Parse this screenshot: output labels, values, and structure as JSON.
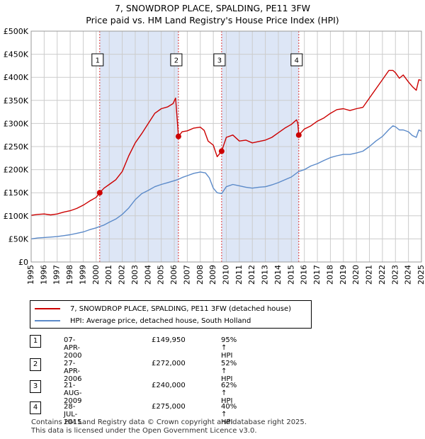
{
  "header": {
    "title": "7, SNOWDROP PLACE, SPALDING, PE11 3FW",
    "subtitle": "Price paid vs. HM Land Registry's House Price Index (HPI)"
  },
  "colors": {
    "property_line": "#cc0000",
    "hpi_line": "#5b8ac9",
    "shade": "#dde6f6",
    "grid": "#cccccc",
    "vline": "#dd3333"
  },
  "legend": {
    "property_label": "7, SNOWDROP PLACE, SPALDING, PE11 3FW (detached house)",
    "hpi_label": "HPI: Average price, detached house, South Holland"
  },
  "sales": [
    {
      "num": "1",
      "date": "07-APR-2000",
      "price": "£149,950",
      "hpi": "95% ↑ HPI"
    },
    {
      "num": "2",
      "date": "27-APR-2006",
      "price": "£272,000",
      "hpi": "52% ↑ HPI"
    },
    {
      "num": "3",
      "date": "21-AUG-2009",
      "price": "£240,000",
      "hpi": "62% ↑ HPI"
    },
    {
      "num": "4",
      "date": "28-JUL-2015",
      "price": "£275,000",
      "hpi": "40% ↑ HPI"
    }
  ],
  "footer": {
    "line1": "Contains HM Land Registry data © Crown copyright and database right 2025.",
    "line2": "This data is licensed under the Open Government Licence v3.0."
  },
  "chart_data": {
    "type": "line",
    "title": "7, SNOWDROP PLACE, SPALDING, PE11 3FW",
    "subtitle": "Price paid vs. HM Land Registry's House Price Index (HPI)",
    "xlabel": "",
    "ylabel": "",
    "xlim": [
      1995,
      2025
    ],
    "ylim": [
      0,
      500000
    ],
    "x_ticks": [
      1995,
      1996,
      1997,
      1998,
      1999,
      2000,
      2001,
      2002,
      2003,
      2004,
      2005,
      2006,
      2007,
      2008,
      2009,
      2010,
      2011,
      2012,
      2013,
      2014,
      2015,
      2016,
      2017,
      2018,
      2019,
      2020,
      2021,
      2022,
      2023,
      2024,
      2025
    ],
    "y_ticks": [
      {
        "value": 0,
        "label": "£0"
      },
      {
        "value": 50000,
        "label": "£50K"
      },
      {
        "value": 100000,
        "label": "£100K"
      },
      {
        "value": 150000,
        "label": "£150K"
      },
      {
        "value": 200000,
        "label": "£200K"
      },
      {
        "value": 250000,
        "label": "£250K"
      },
      {
        "value": 300000,
        "label": "£300K"
      },
      {
        "value": 350000,
        "label": "£350K"
      },
      {
        "value": 400000,
        "label": "£400K"
      },
      {
        "value": 450000,
        "label": "£450K"
      },
      {
        "value": 500000,
        "label": "£500K"
      }
    ],
    "grid": true,
    "shaded_ranges": [
      [
        2000.27,
        2006.32
      ],
      [
        2009.64,
        2015.57
      ]
    ],
    "markers": [
      {
        "label": "1",
        "x": 2000.27,
        "y": 149950
      },
      {
        "label": "2",
        "x": 2006.32,
        "y": 272000
      },
      {
        "label": "3",
        "x": 2009.64,
        "y": 240000
      },
      {
        "label": "4",
        "x": 2015.57,
        "y": 275000
      }
    ],
    "series": [
      {
        "name": "7, SNOWDROP PLACE, SPALDING, PE11 3FW (detached house)",
        "color": "#cc0000",
        "points": [
          [
            1995.0,
            101000
          ],
          [
            1995.5,
            103000
          ],
          [
            1996.0,
            104000
          ],
          [
            1996.5,
            102000
          ],
          [
            1997.0,
            104000
          ],
          [
            1997.5,
            108000
          ],
          [
            1998.0,
            111000
          ],
          [
            1998.5,
            116000
          ],
          [
            1999.0,
            123000
          ],
          [
            1999.5,
            132000
          ],
          [
            2000.0,
            140000
          ],
          [
            2000.27,
            149950
          ],
          [
            2000.6,
            160000
          ],
          [
            2001.0,
            168000
          ],
          [
            2001.5,
            178000
          ],
          [
            2002.0,
            196000
          ],
          [
            2002.5,
            230000
          ],
          [
            2003.0,
            258000
          ],
          [
            2003.5,
            278000
          ],
          [
            2004.0,
            300000
          ],
          [
            2004.5,
            322000
          ],
          [
            2005.0,
            332000
          ],
          [
            2005.5,
            336000
          ],
          [
            2005.9,
            343000
          ],
          [
            2006.1,
            355000
          ],
          [
            2006.25,
            300000
          ],
          [
            2006.32,
            272000
          ],
          [
            2006.6,
            282000
          ],
          [
            2007.0,
            284000
          ],
          [
            2007.5,
            290000
          ],
          [
            2008.0,
            292000
          ],
          [
            2008.3,
            285000
          ],
          [
            2008.6,
            262000
          ],
          [
            2009.0,
            253000
          ],
          [
            2009.3,
            228000
          ],
          [
            2009.64,
            240000
          ],
          [
            2010.0,
            270000
          ],
          [
            2010.5,
            275000
          ],
          [
            2011.0,
            262000
          ],
          [
            2011.5,
            264000
          ],
          [
            2012.0,
            258000
          ],
          [
            2012.5,
            261000
          ],
          [
            2013.0,
            264000
          ],
          [
            2013.5,
            270000
          ],
          [
            2014.0,
            280000
          ],
          [
            2014.5,
            290000
          ],
          [
            2015.0,
            298000
          ],
          [
            2015.4,
            308000
          ],
          [
            2015.5,
            300000
          ],
          [
            2015.57,
            275000
          ],
          [
            2016.0,
            288000
          ],
          [
            2016.5,
            295000
          ],
          [
            2017.0,
            305000
          ],
          [
            2017.5,
            312000
          ],
          [
            2018.0,
            322000
          ],
          [
            2018.5,
            330000
          ],
          [
            2019.0,
            332000
          ],
          [
            2019.5,
            328000
          ],
          [
            2020.0,
            332000
          ],
          [
            2020.5,
            335000
          ],
          [
            2021.0,
            355000
          ],
          [
            2021.5,
            375000
          ],
          [
            2022.0,
            395000
          ],
          [
            2022.5,
            415000
          ],
          [
            2022.8,
            415000
          ],
          [
            2023.0,
            410000
          ],
          [
            2023.3,
            398000
          ],
          [
            2023.6,
            405000
          ],
          [
            2024.0,
            390000
          ],
          [
            2024.3,
            380000
          ],
          [
            2024.6,
            372000
          ],
          [
            2024.8,
            395000
          ],
          [
            2025.0,
            393000
          ]
        ]
      },
      {
        "name": "HPI: Average price, detached house, South Holland",
        "color": "#5b8ac9",
        "points": [
          [
            1995.0,
            50000
          ],
          [
            1995.5,
            52000
          ],
          [
            1996.0,
            53000
          ],
          [
            1996.5,
            54000
          ],
          [
            1997.0,
            55000
          ],
          [
            1997.5,
            57000
          ],
          [
            1998.0,
            59000
          ],
          [
            1998.5,
            62000
          ],
          [
            1999.0,
            65000
          ],
          [
            1999.5,
            70000
          ],
          [
            2000.0,
            74000
          ],
          [
            2000.27,
            76800
          ],
          [
            2000.6,
            80000
          ],
          [
            2001.0,
            86000
          ],
          [
            2001.5,
            93000
          ],
          [
            2002.0,
            103000
          ],
          [
            2002.5,
            117000
          ],
          [
            2003.0,
            135000
          ],
          [
            2003.5,
            148000
          ],
          [
            2004.0,
            155000
          ],
          [
            2004.5,
            163000
          ],
          [
            2005.0,
            168000
          ],
          [
            2005.5,
            172000
          ],
          [
            2006.0,
            176000
          ],
          [
            2006.32,
            179000
          ],
          [
            2006.6,
            183000
          ],
          [
            2007.0,
            187000
          ],
          [
            2007.5,
            192000
          ],
          [
            2008.0,
            195000
          ],
          [
            2008.4,
            193000
          ],
          [
            2008.7,
            182000
          ],
          [
            2009.0,
            160000
          ],
          [
            2009.3,
            150000
          ],
          [
            2009.64,
            148000
          ],
          [
            2010.0,
            163000
          ],
          [
            2010.5,
            168000
          ],
          [
            2011.0,
            165000
          ],
          [
            2011.5,
            162000
          ],
          [
            2012.0,
            160000
          ],
          [
            2012.5,
            162000
          ],
          [
            2013.0,
            163000
          ],
          [
            2013.5,
            167000
          ],
          [
            2014.0,
            172000
          ],
          [
            2014.5,
            178000
          ],
          [
            2015.0,
            184000
          ],
          [
            2015.57,
            196000
          ],
          [
            2016.0,
            200000
          ],
          [
            2016.5,
            208000
          ],
          [
            2017.0,
            213000
          ],
          [
            2017.5,
            220000
          ],
          [
            2018.0,
            226000
          ],
          [
            2018.5,
            230000
          ],
          [
            2019.0,
            233000
          ],
          [
            2019.5,
            233000
          ],
          [
            2020.0,
            236000
          ],
          [
            2020.5,
            240000
          ],
          [
            2021.0,
            250000
          ],
          [
            2021.5,
            262000
          ],
          [
            2022.0,
            272000
          ],
          [
            2022.5,
            287000
          ],
          [
            2022.8,
            295000
          ],
          [
            2023.0,
            293000
          ],
          [
            2023.3,
            286000
          ],
          [
            2023.6,
            286000
          ],
          [
            2024.0,
            282000
          ],
          [
            2024.3,
            274000
          ],
          [
            2024.6,
            270000
          ],
          [
            2024.8,
            286000
          ],
          [
            2025.0,
            283000
          ]
        ]
      }
    ]
  }
}
